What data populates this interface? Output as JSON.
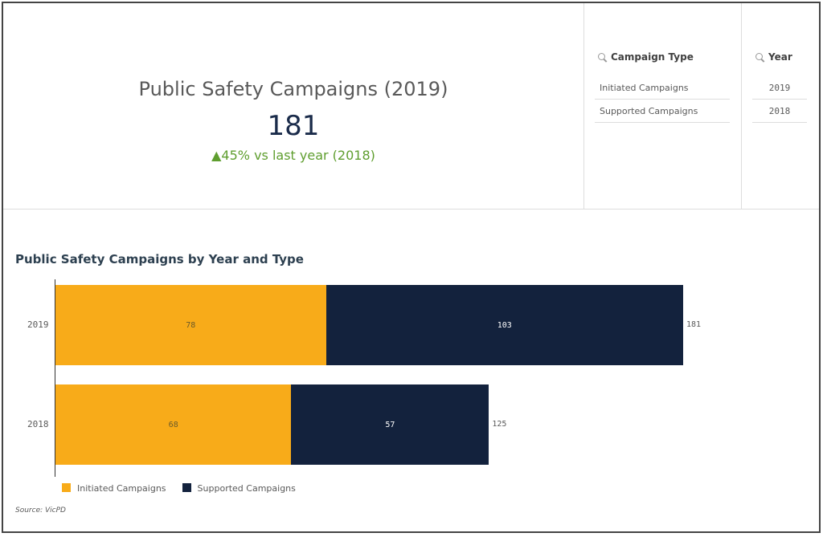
{
  "kpi": {
    "title": "Public Safety Campaigns (2019)",
    "value": "181",
    "delta": "▲45% vs last year (2018)"
  },
  "filters": [
    {
      "label": "Campaign Type",
      "items": [
        "Initiated Campaigns",
        "Supported Campaigns"
      ]
    },
    {
      "label": "Year",
      "items": [
        "2019",
        "2018"
      ]
    }
  ],
  "chart_data": {
    "type": "bar",
    "orientation": "horizontal",
    "stacked": true,
    "title": "Public Safety Campaigns by Year and Type",
    "categories": [
      "2019",
      "2018"
    ],
    "series": [
      {
        "name": "Initiated Campaigns",
        "values": [
          78,
          68
        ],
        "color": "#f8ab19"
      },
      {
        "name": "Supported Campaigns",
        "values": [
          103,
          57
        ],
        "color": "#13223d"
      }
    ],
    "totals": [
      181,
      125
    ],
    "legend": "bottom-left"
  },
  "source": "Source: VicPD"
}
